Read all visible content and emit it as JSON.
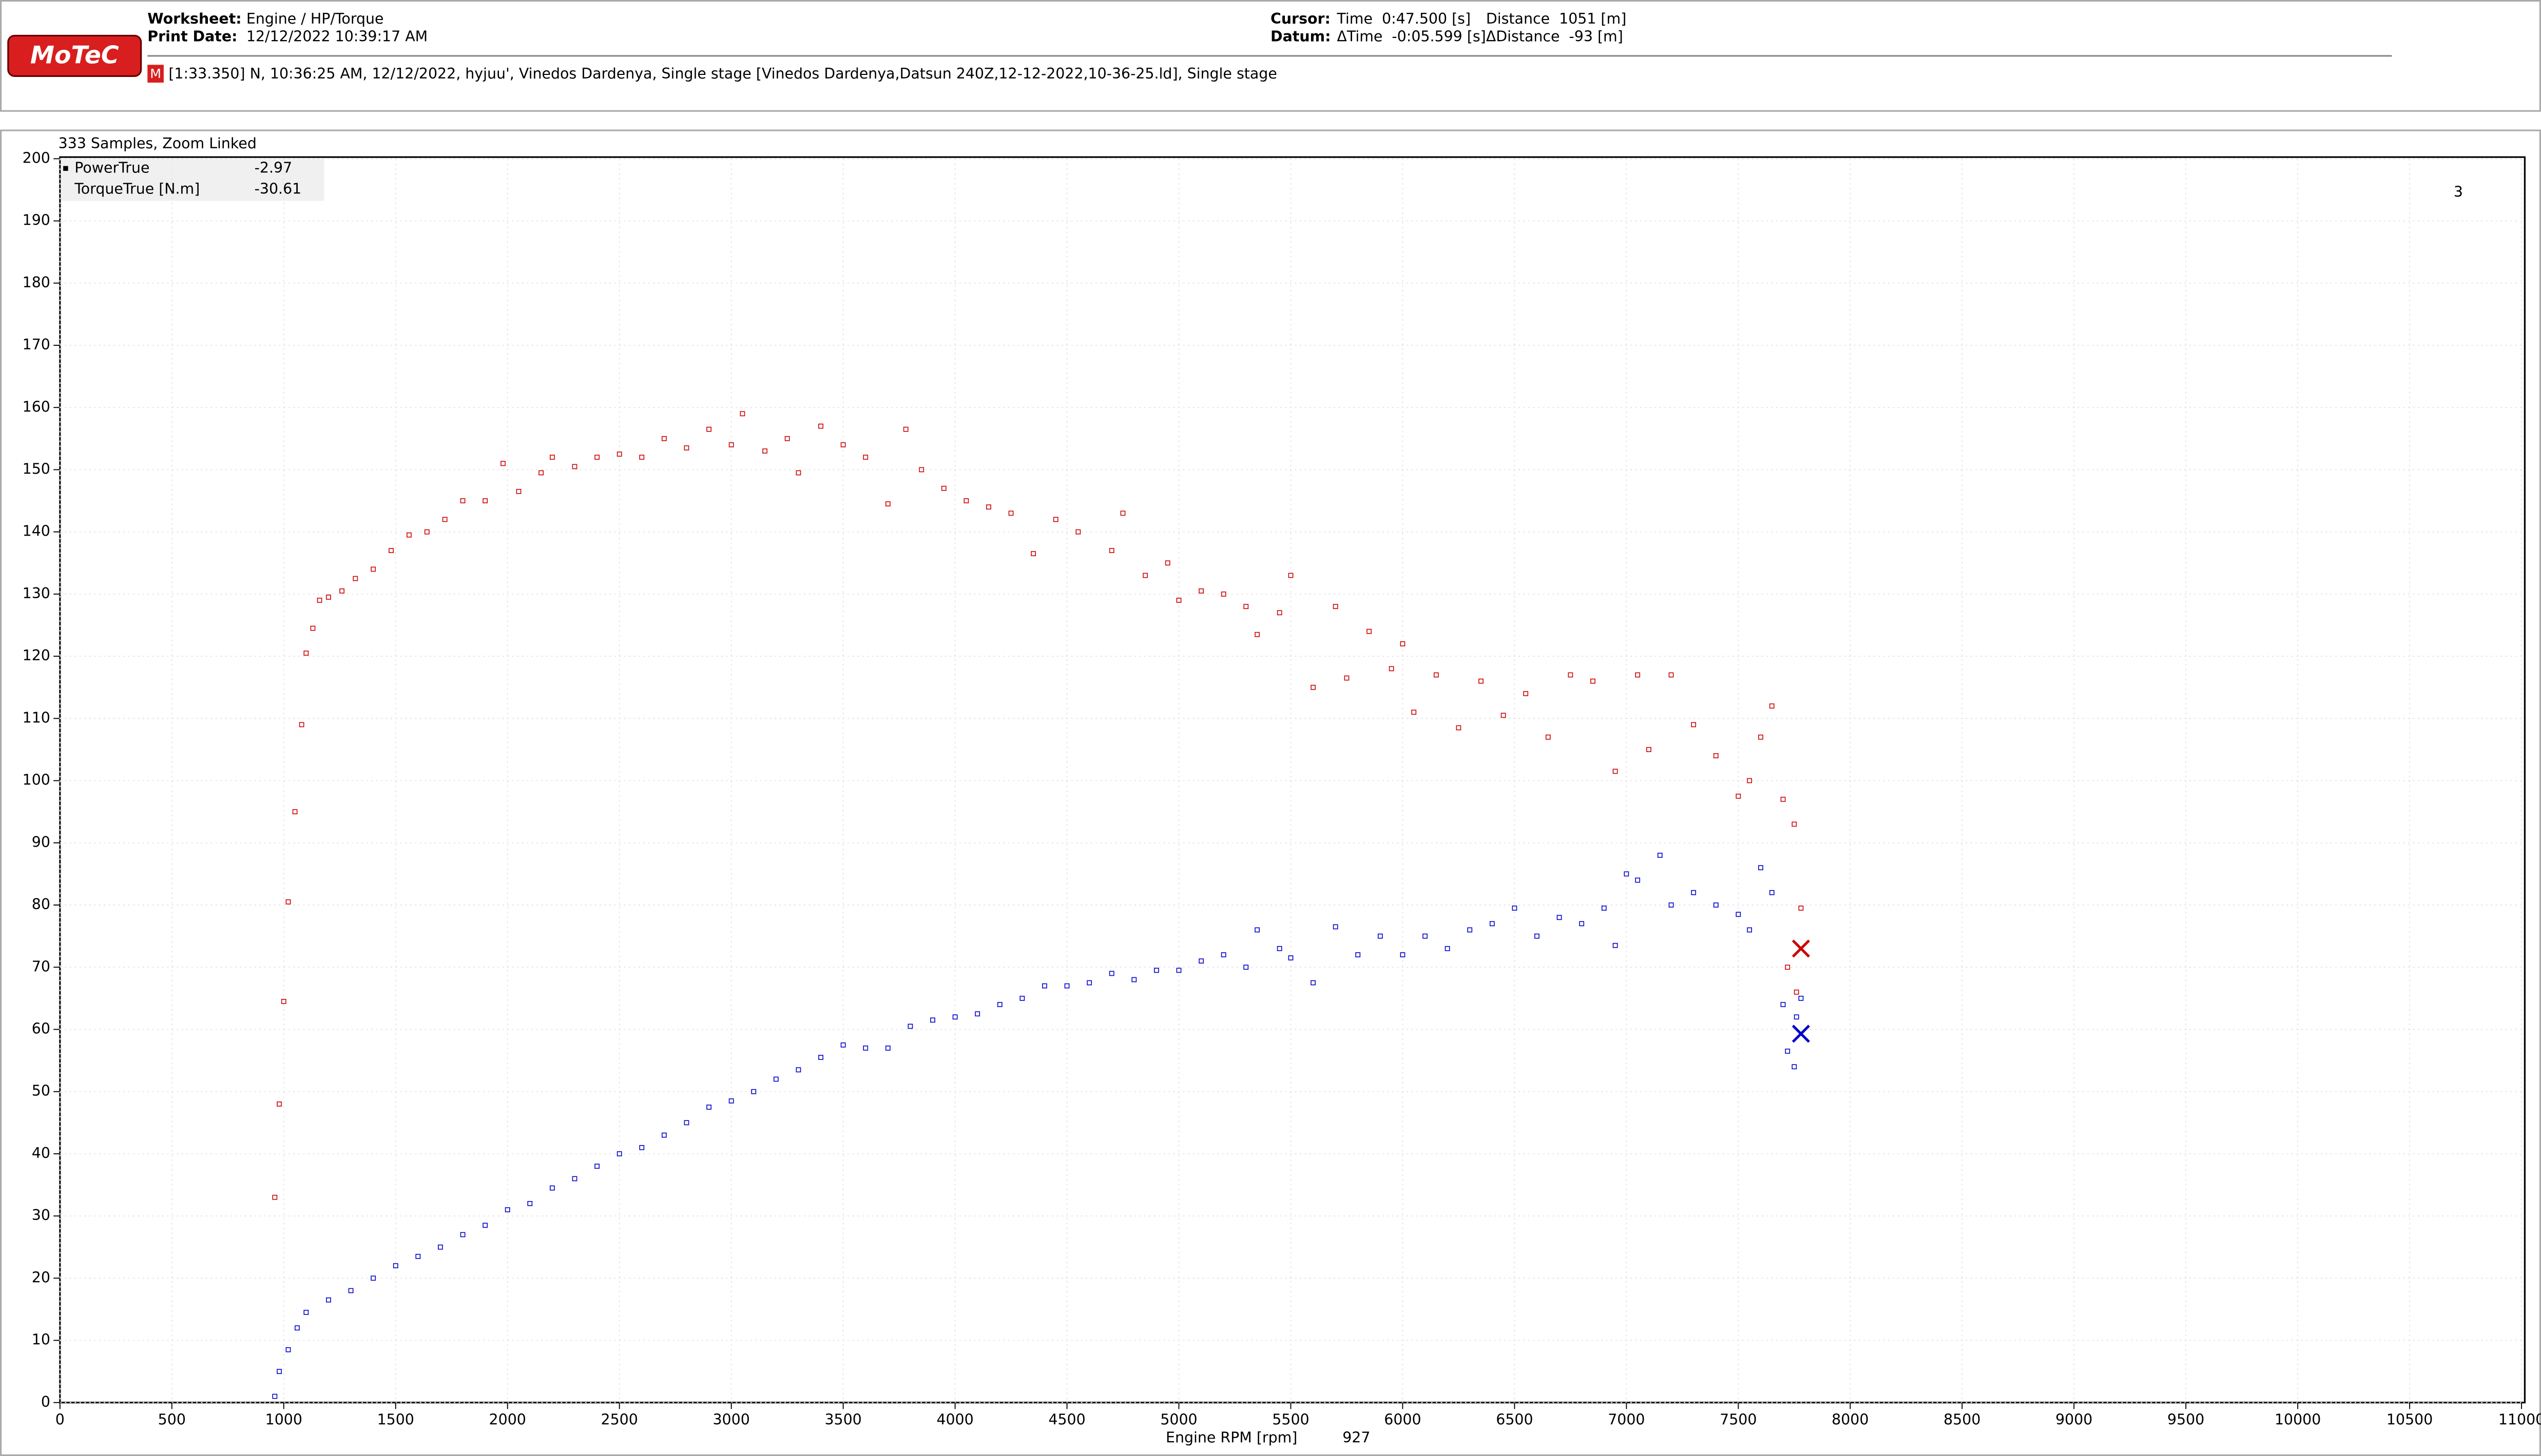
{
  "header": {
    "logo": "MoTeC",
    "worksheet_label": "Worksheet:",
    "worksheet": "Engine / HP/Torque",
    "print_label": "Print Date:",
    "print_date": "12/12/2022 10:39:17 AM",
    "cursor_label": "Cursor:",
    "cursor_time": "Time  0:47.500 [s]",
    "cursor_distance": "Distance  1051 [m]",
    "datum_label": "Datum:",
    "datum_time": "ΔTime  -0:05.599 [s]",
    "datum_distance": "ΔDistance  -93 [m]",
    "file_icon": "M",
    "file_info": "[1:33.350] N, 10:36:25 AM, 12/12/2022, hyjuu', Vinedos Dardenya, Single stage [Vinedos Dardenya,Datsun 240Z,12-12-2022,10-36-25.ld], Single stage"
  },
  "chart_data": {
    "type": "scatter",
    "subtitle": "333 Samples, Zoom Linked",
    "xlabel": "Engine RPM [rpm]",
    "x_readout": 927,
    "annotation": "3",
    "xlim": [
      0,
      11000
    ],
    "ylim": [
      0,
      200
    ],
    "xticks": [
      0,
      500,
      1000,
      1500,
      2000,
      2500,
      3000,
      3500,
      4000,
      4500,
      5000,
      5500,
      6000,
      6500,
      7000,
      7500,
      8000,
      8500,
      9000,
      9500,
      10000,
      10500,
      11000
    ],
    "yticks": [
      0,
      10,
      20,
      30,
      40,
      50,
      60,
      70,
      80,
      90,
      100,
      110,
      120,
      130,
      140,
      150,
      160,
      170,
      180,
      190,
      200
    ],
    "grid": true,
    "legend": "top-left",
    "series": [
      {
        "name": "PowerTrue",
        "color": "#0000cc",
        "legend_value": -2.97,
        "cursor_x": 7780,
        "cursor_y": 59.3,
        "x": [
          960,
          980,
          1020,
          1060,
          1100,
          1200,
          1300,
          1400,
          1500,
          1600,
          1700,
          1800,
          1900,
          2000,
          2100,
          2200,
          2300,
          2400,
          2500,
          2600,
          2700,
          2800,
          2900,
          3000,
          3100,
          3200,
          3300,
          3400,
          3500,
          3600,
          3700,
          3800,
          3900,
          4000,
          4100,
          4200,
          4300,
          4400,
          4500,
          4600,
          4700,
          4800,
          4900,
          5000,
          5100,
          5200,
          5300,
          5350,
          5450,
          5500,
          5600,
          5700,
          5800,
          5900,
          6000,
          6100,
          6200,
          6300,
          6400,
          6500,
          6600,
          6700,
          6800,
          6900,
          6950,
          7000,
          7050,
          7150,
          7200,
          7300,
          7400,
          7500,
          7550,
          7600,
          7650,
          7700,
          7720,
          7750,
          7760,
          7780
        ],
        "values": [
          1,
          5,
          8.5,
          12,
          14.5,
          16.5,
          18,
          20,
          22,
          23.5,
          25,
          27,
          28.5,
          31,
          32,
          34.5,
          36,
          38,
          40,
          41,
          43,
          45,
          47.5,
          48.5,
          50,
          52,
          53.5,
          55.5,
          57.5,
          57,
          57,
          60.5,
          61.5,
          62,
          62.5,
          64,
          65,
          67,
          67,
          67.5,
          69,
          68,
          69.5,
          69.5,
          71,
          72,
          70,
          76,
          73,
          71.5,
          67.5,
          76.5,
          72,
          75,
          72,
          75,
          73,
          76,
          77,
          79.5,
          75,
          78,
          77,
          79.5,
          73.5,
          85,
          84,
          88,
          80,
          82,
          80,
          78.5,
          76,
          86,
          82,
          64,
          56.5,
          54,
          62,
          65
        ]
      },
      {
        "name": "TorqueTrue [N.m]",
        "color": "#cc0000",
        "legend_value": -30.61,
        "cursor_x": 7780,
        "cursor_y": 73,
        "x": [
          960,
          980,
          1000,
          1020,
          1050,
          1080,
          1100,
          1130,
          1160,
          1200,
          1260,
          1320,
          1400,
          1480,
          1560,
          1640,
          1720,
          1800,
          1900,
          1980,
          2050,
          2150,
          2200,
          2300,
          2400,
          2500,
          2600,
          2700,
          2800,
          2900,
          3000,
          3050,
          3150,
          3250,
          3300,
          3400,
          3500,
          3600,
          3700,
          3780,
          3850,
          3950,
          4050,
          4150,
          4250,
          4350,
          4450,
          4550,
          4700,
          4750,
          4850,
          4950,
          5000,
          5100,
          5200,
          5300,
          5350,
          5450,
          5500,
          5600,
          5700,
          5750,
          5850,
          5950,
          6000,
          6050,
          6150,
          6250,
          6350,
          6450,
          6550,
          6650,
          6750,
          6850,
          6950,
          7050,
          7100,
          7200,
          7300,
          7400,
          7500,
          7550,
          7600,
          7650,
          7700,
          7750,
          7780,
          7760,
          7720
        ],
        "values": [
          33,
          48,
          64.5,
          80.5,
          95,
          109,
          120.5,
          124.5,
          129,
          129.5,
          130.5,
          132.5,
          134,
          137,
          139.5,
          140,
          142,
          145,
          145,
          151,
          146.5,
          149.5,
          152,
          150.5,
          152,
          152.5,
          152,
          155,
          153.5,
          156.5,
          154,
          159,
          153,
          155,
          149.5,
          157,
          154,
          152,
          144.5,
          156.5,
          150,
          147,
          145,
          144,
          143,
          136.5,
          142,
          140,
          137,
          143,
          133,
          135,
          129,
          130.5,
          130,
          128,
          123.5,
          127,
          133,
          115,
          128,
          116.5,
          124,
          118,
          122,
          111,
          117,
          108.5,
          116,
          110.5,
          114,
          107,
          117,
          116,
          101.5,
          117,
          105,
          117,
          109,
          104,
          97.5,
          100,
          107,
          112,
          97,
          93,
          79.5,
          66,
          70
        ]
      }
    ]
  }
}
